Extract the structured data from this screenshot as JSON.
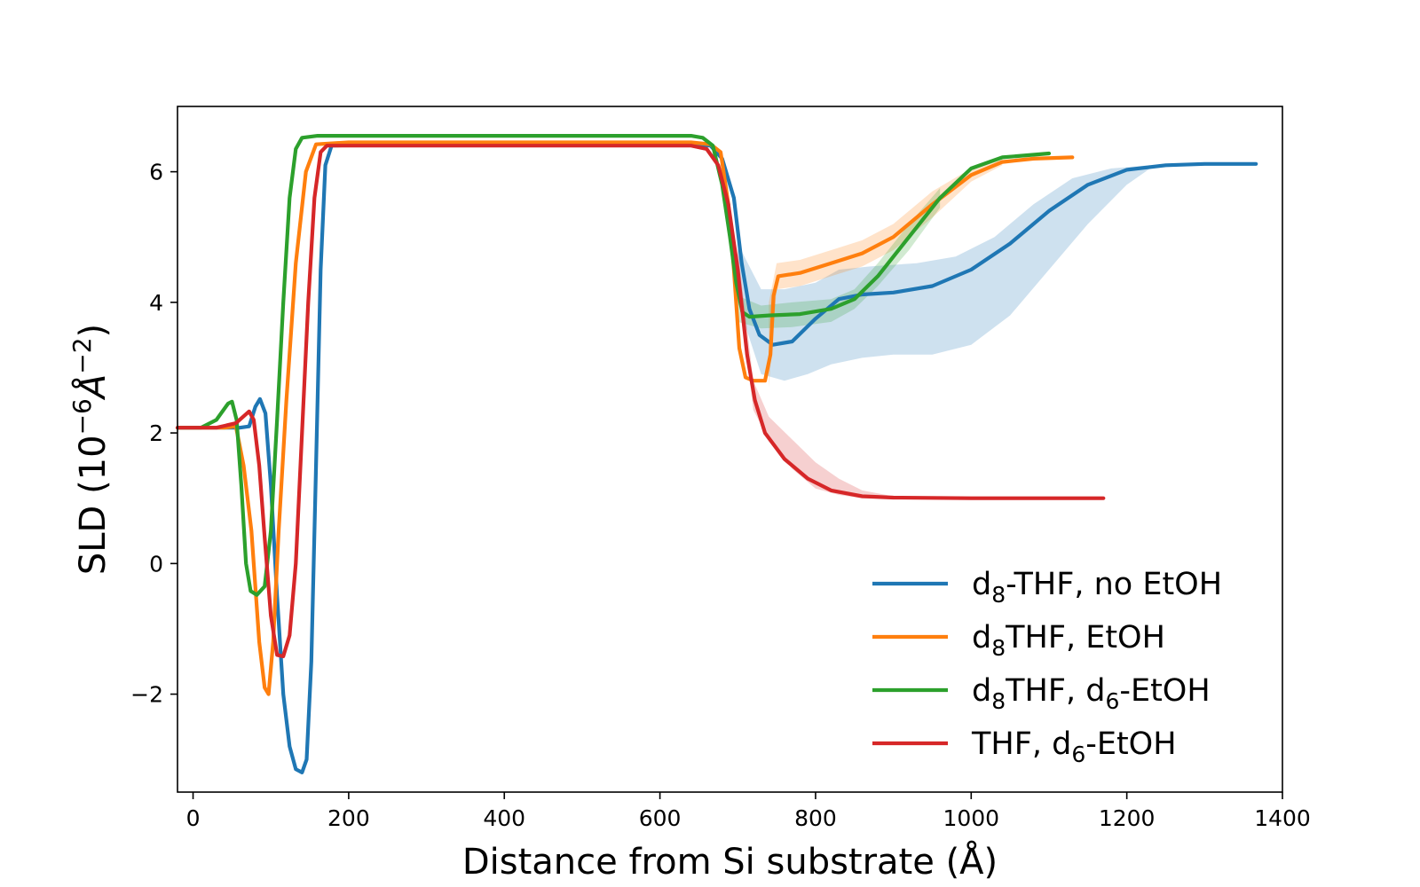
{
  "chart_data": {
    "type": "line",
    "title": "",
    "xlabel": "Distance from Si substrate (Å)",
    "ylabel_main": "SLD (10",
    "ylabel_exp": "−6",
    "ylabel_unit": "Å",
    "ylabel_unit_exp": "−2",
    "ylabel_close": ")",
    "xlim": [
      -20,
      1400
    ],
    "ylim": [
      -3.5,
      7.0
    ],
    "xticks": [
      0,
      200,
      400,
      600,
      800,
      1000,
      1200,
      1400
    ],
    "yticks": [
      -2,
      0,
      2,
      4,
      6
    ],
    "xtick_labels": [
      "0",
      "200",
      "400",
      "600",
      "800",
      "1000",
      "1200",
      "1400"
    ],
    "ytick_labels": [
      "−2",
      "0",
      "2",
      "4",
      "6"
    ],
    "grid": false,
    "legend_position": "lower-right",
    "legend_labels": [
      {
        "pre": "d",
        "sub": "8",
        "post": "-THF, no EtOH"
      },
      {
        "pre": "d",
        "sub": "8",
        "post": "THF, EtOH"
      },
      {
        "pre": "d",
        "sub": "8",
        "post": "THF, d",
        "sub2": "6",
        "post2": "-EtOH"
      },
      {
        "pre": "THF, d",
        "sub": "6",
        "post": "-EtOH"
      }
    ],
    "series": [
      {
        "color": "#1f77b4",
        "points": [
          [
            -20,
            2.08
          ],
          [
            60,
            2.08
          ],
          [
            72,
            2.1
          ],
          [
            80,
            2.4
          ],
          [
            86,
            2.52
          ],
          [
            93,
            2.3
          ],
          [
            100,
            1.2
          ],
          [
            108,
            -0.5
          ],
          [
            116,
            -2.0
          ],
          [
            124,
            -2.8
          ],
          [
            132,
            -3.15
          ],
          [
            140,
            -3.2
          ],
          [
            146,
            -3.0
          ],
          [
            152,
            -1.5
          ],
          [
            158,
            1.5
          ],
          [
            164,
            4.5
          ],
          [
            170,
            6.1
          ],
          [
            178,
            6.4
          ],
          [
            250,
            6.42
          ],
          [
            640,
            6.42
          ],
          [
            665,
            6.4
          ],
          [
            680,
            6.2
          ],
          [
            695,
            5.6
          ],
          [
            705,
            4.6
          ],
          [
            715,
            3.9
          ],
          [
            728,
            3.5
          ],
          [
            745,
            3.35
          ],
          [
            770,
            3.4
          ],
          [
            800,
            3.75
          ],
          [
            830,
            4.05
          ],
          [
            860,
            4.12
          ],
          [
            900,
            4.15
          ],
          [
            950,
            4.25
          ],
          [
            1000,
            4.5
          ],
          [
            1050,
            4.9
          ],
          [
            1100,
            5.4
          ],
          [
            1150,
            5.8
          ],
          [
            1200,
            6.03
          ],
          [
            1250,
            6.1
          ],
          [
            1300,
            6.12
          ],
          [
            1366,
            6.12
          ]
        ],
        "band_upper": [
          [
            700,
            4.9
          ],
          [
            730,
            4.2
          ],
          [
            760,
            4.2
          ],
          [
            800,
            4.3
          ],
          [
            830,
            4.5
          ],
          [
            870,
            4.55
          ],
          [
            930,
            4.6
          ],
          [
            980,
            4.7
          ],
          [
            1030,
            5.0
          ],
          [
            1080,
            5.5
          ],
          [
            1130,
            5.9
          ],
          [
            1180,
            6.05
          ],
          [
            1230,
            6.1
          ]
        ],
        "band_lower": [
          [
            700,
            4.0
          ],
          [
            730,
            2.9
          ],
          [
            760,
            2.8
          ],
          [
            790,
            2.9
          ],
          [
            820,
            3.05
          ],
          [
            860,
            3.15
          ],
          [
            900,
            3.2
          ],
          [
            950,
            3.2
          ],
          [
            1000,
            3.35
          ],
          [
            1050,
            3.8
          ],
          [
            1100,
            4.5
          ],
          [
            1150,
            5.2
          ],
          [
            1200,
            5.8
          ],
          [
            1230,
            6.05
          ]
        ]
      },
      {
        "color": "#ff7f0e",
        "points": [
          [
            -20,
            2.08
          ],
          [
            40,
            2.08
          ],
          [
            55,
            2.1
          ],
          [
            65,
            1.5
          ],
          [
            75,
            0.5
          ],
          [
            85,
            -1.2
          ],
          [
            92,
            -1.9
          ],
          [
            97,
            -2.0
          ],
          [
            103,
            -1.2
          ],
          [
            110,
            0.5
          ],
          [
            120,
            2.5
          ],
          [
            132,
            4.6
          ],
          [
            145,
            6.0
          ],
          [
            158,
            6.42
          ],
          [
            200,
            6.45
          ],
          [
            640,
            6.45
          ],
          [
            665,
            6.42
          ],
          [
            678,
            6.3
          ],
          [
            688,
            5.5
          ],
          [
            695,
            4.5
          ],
          [
            702,
            3.3
          ],
          [
            710,
            2.85
          ],
          [
            720,
            2.8
          ],
          [
            735,
            2.8
          ],
          [
            742,
            3.2
          ],
          [
            746,
            4.1
          ],
          [
            752,
            4.4
          ],
          [
            780,
            4.45
          ],
          [
            820,
            4.6
          ],
          [
            860,
            4.75
          ],
          [
            900,
            5.0
          ],
          [
            950,
            5.5
          ],
          [
            1000,
            5.95
          ],
          [
            1040,
            6.15
          ],
          [
            1080,
            6.2
          ],
          [
            1130,
            6.22
          ]
        ],
        "band_upper": [
          [
            740,
            4.0
          ],
          [
            750,
            4.6
          ],
          [
            780,
            4.65
          ],
          [
            820,
            4.8
          ],
          [
            860,
            4.95
          ],
          [
            900,
            5.2
          ],
          [
            950,
            5.7
          ],
          [
            1000,
            6.05
          ],
          [
            1040,
            6.2
          ]
        ],
        "band_lower": [
          [
            740,
            2.7
          ],
          [
            750,
            4.2
          ],
          [
            780,
            4.25
          ],
          [
            820,
            4.4
          ],
          [
            860,
            4.55
          ],
          [
            900,
            4.8
          ],
          [
            950,
            5.3
          ],
          [
            1000,
            5.85
          ],
          [
            1040,
            6.1
          ]
        ]
      },
      {
        "color": "#2ca02c",
        "points": [
          [
            -20,
            2.08
          ],
          [
            10,
            2.08
          ],
          [
            30,
            2.2
          ],
          [
            45,
            2.45
          ],
          [
            50,
            2.48
          ],
          [
            56,
            2.2
          ],
          [
            62,
            1.2
          ],
          [
            68,
            0.0
          ],
          [
            74,
            -0.42
          ],
          [
            82,
            -0.48
          ],
          [
            92,
            -0.35
          ],
          [
            100,
            0.5
          ],
          [
            108,
            2.2
          ],
          [
            116,
            4.0
          ],
          [
            124,
            5.6
          ],
          [
            132,
            6.35
          ],
          [
            140,
            6.52
          ],
          [
            160,
            6.55
          ],
          [
            640,
            6.55
          ],
          [
            655,
            6.52
          ],
          [
            668,
            6.4
          ],
          [
            680,
            5.8
          ],
          [
            690,
            5.0
          ],
          [
            698,
            4.3
          ],
          [
            706,
            3.85
          ],
          [
            715,
            3.78
          ],
          [
            740,
            3.8
          ],
          [
            780,
            3.82
          ],
          [
            820,
            3.9
          ],
          [
            850,
            4.05
          ],
          [
            880,
            4.4
          ],
          [
            920,
            5.0
          ],
          [
            960,
            5.6
          ],
          [
            1000,
            6.05
          ],
          [
            1040,
            6.22
          ],
          [
            1100,
            6.28
          ]
        ],
        "band_upper": [
          [
            700,
            4.1
          ],
          [
            730,
            3.95
          ],
          [
            770,
            4.0
          ],
          [
            820,
            4.05
          ],
          [
            850,
            4.2
          ],
          [
            880,
            4.6
          ],
          [
            920,
            5.2
          ],
          [
            960,
            5.75
          ]
        ],
        "band_lower": [
          [
            700,
            3.7
          ],
          [
            730,
            3.6
          ],
          [
            770,
            3.62
          ],
          [
            820,
            3.7
          ],
          [
            850,
            3.9
          ],
          [
            880,
            4.25
          ],
          [
            920,
            4.8
          ],
          [
            960,
            5.45
          ]
        ]
      },
      {
        "color": "#d62728",
        "points": [
          [
            -20,
            2.08
          ],
          [
            30,
            2.08
          ],
          [
            55,
            2.15
          ],
          [
            72,
            2.33
          ],
          [
            78,
            2.2
          ],
          [
            85,
            1.5
          ],
          [
            92,
            0.4
          ],
          [
            100,
            -0.8
          ],
          [
            108,
            -1.4
          ],
          [
            116,
            -1.42
          ],
          [
            124,
            -1.1
          ],
          [
            132,
            0.0
          ],
          [
            140,
            2.0
          ],
          [
            148,
            4.0
          ],
          [
            156,
            5.6
          ],
          [
            164,
            6.3
          ],
          [
            172,
            6.4
          ],
          [
            250,
            6.4
          ],
          [
            640,
            6.4
          ],
          [
            660,
            6.35
          ],
          [
            675,
            6.1
          ],
          [
            688,
            5.5
          ],
          [
            700,
            4.5
          ],
          [
            712,
            3.2
          ],
          [
            722,
            2.5
          ],
          [
            735,
            2.0
          ],
          [
            760,
            1.6
          ],
          [
            790,
            1.3
          ],
          [
            820,
            1.12
          ],
          [
            860,
            1.03
          ],
          [
            900,
            1.01
          ],
          [
            1000,
            1.0
          ],
          [
            1170,
            1.0
          ]
        ],
        "band_upper": [
          [
            700,
            4.8
          ],
          [
            720,
            2.8
          ],
          [
            740,
            2.25
          ],
          [
            770,
            1.9
          ],
          [
            800,
            1.55
          ],
          [
            830,
            1.3
          ],
          [
            860,
            1.12
          ],
          [
            900,
            1.03
          ]
        ],
        "band_lower": [
          [
            700,
            4.3
          ],
          [
            720,
            2.35
          ],
          [
            740,
            1.9
          ],
          [
            770,
            1.45
          ],
          [
            800,
            1.15
          ],
          [
            830,
            1.05
          ],
          [
            860,
            1.0
          ],
          [
            900,
            1.0
          ]
        ]
      }
    ]
  }
}
